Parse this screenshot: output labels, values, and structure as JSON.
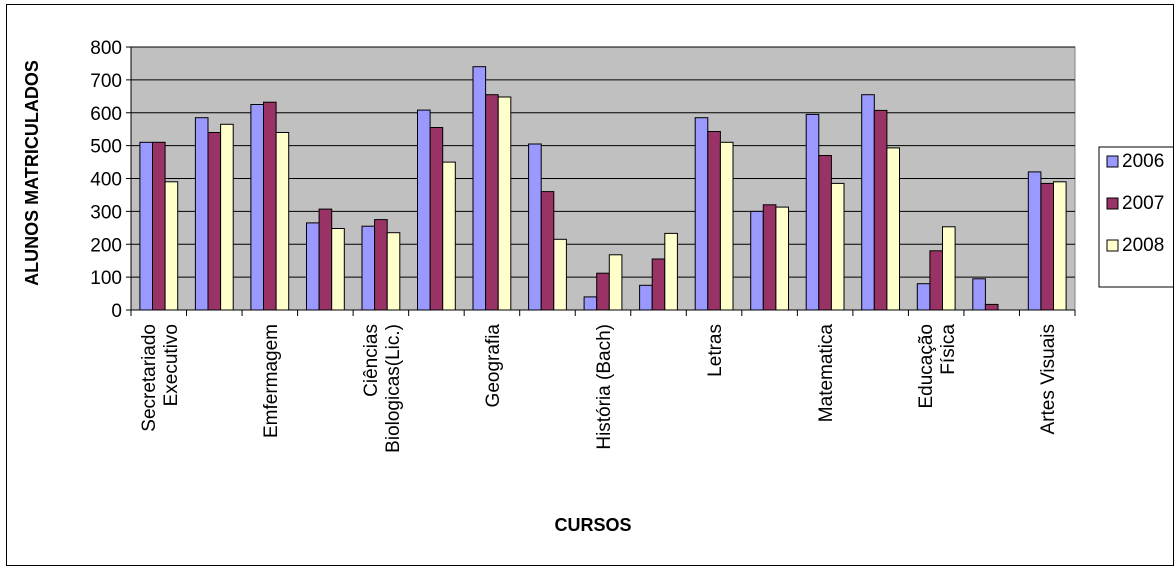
{
  "chart_data": {
    "type": "bar",
    "title": "",
    "xlabel": "CURSOS",
    "ylabel": "ALUNOS MATRICULADOS",
    "ylim": [
      0,
      800
    ],
    "yticks": [
      "0",
      "100",
      "200",
      "300",
      "400",
      "500",
      "600",
      "700",
      "800"
    ],
    "grid": true,
    "legend_position": "right",
    "categories": [
      "Secretariado Executivo",
      "",
      "Emfermagem",
      "",
      "Ciências Biologicas(Lic.)",
      "",
      "Geografia",
      "",
      "História (Bach)",
      "",
      "Letras",
      "",
      "Matematica",
      "",
      "Educação Física",
      "",
      "Artes Visuais"
    ],
    "category_lines": [
      [
        "Secretariado",
        "Executivo"
      ],
      [],
      [
        "Emfermagem"
      ],
      [],
      [
        "Ciências",
        "Biologicas(Lic.)"
      ],
      [],
      [
        "Geografia"
      ],
      [],
      [
        "História (Bach)"
      ],
      [],
      [
        "Letras"
      ],
      [],
      [
        "Matematica"
      ],
      [],
      [
        "Educação",
        "Física"
      ],
      [],
      [
        "Artes Visuais"
      ]
    ],
    "series": [
      {
        "name": "2006",
        "color": "#9999ff",
        "values": [
          510,
          585,
          625,
          265,
          255,
          608,
          740,
          505,
          40,
          75,
          585,
          300,
          595,
          655,
          80,
          95,
          420
        ]
      },
      {
        "name": "2007",
        "color": "#993366",
        "values": [
          510,
          540,
          632,
          307,
          275,
          555,
          655,
          360,
          112,
          155,
          543,
          320,
          470,
          607,
          180,
          17,
          385
        ]
      },
      {
        "name": "2008",
        "color": "#ffffcc",
        "values": [
          390,
          565,
          540,
          248,
          235,
          450,
          648,
          215,
          168,
          233,
          510,
          313,
          385,
          493,
          253,
          0,
          390
        ]
      }
    ],
    "plot_bg": "#c0c0c0"
  }
}
